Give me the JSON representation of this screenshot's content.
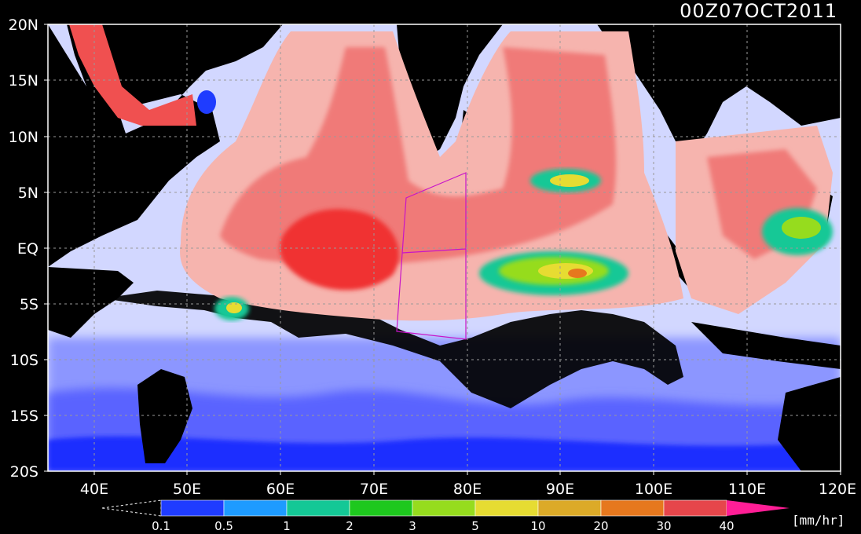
{
  "timestamp": "00Z07OCT2011",
  "map": {
    "lat_labels": [
      "20N",
      "15N",
      "10N",
      "5N",
      "EQ",
      "5S",
      "10S",
      "15S",
      "20S"
    ],
    "lon_labels": [
      "40E",
      "50E",
      "60E",
      "70E",
      "80E",
      "90E",
      "100E",
      "110E",
      "120E"
    ]
  },
  "colorbar": {
    "unit": "[mm/hr]",
    "levels": [
      "0.1",
      "0.5",
      "1",
      "2",
      "3",
      "5",
      "10",
      "20",
      "30",
      "40"
    ],
    "colors": [
      "#1f3cff",
      "#1e9bff",
      "#14c896",
      "#1ec81e",
      "#96dc1e",
      "#e6dc32",
      "#dcaa28",
      "#e6781e",
      "#e6464b",
      "#ff1e96"
    ],
    "under_color": "#000000"
  },
  "colors": {
    "land": "#000000",
    "sea_light": "#d2d7ff",
    "rain_pink": "#f5a5a0",
    "rain_red": "#f05050",
    "grid": "#9a9a9a",
    "box": "#c814c8"
  }
}
